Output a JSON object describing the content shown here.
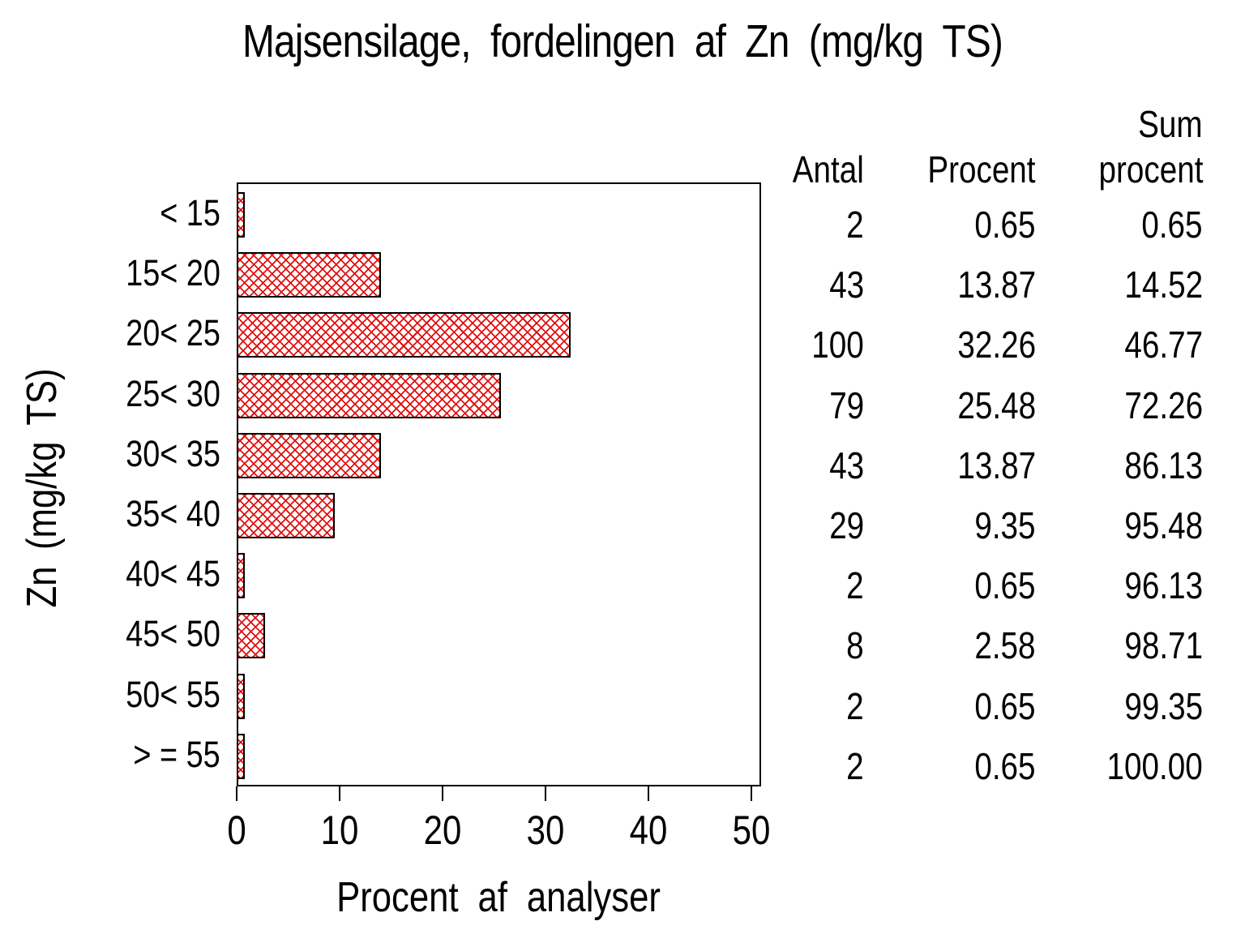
{
  "title": "Majsensilage, fordelingen af Zn (mg/kg TS)",
  "chart_data": {
    "type": "bar",
    "orientation": "horizontal",
    "title": "Majsensilage, fordelingen af Zn (mg/kg TS)",
    "xlabel": "Procent af analyser",
    "ylabel": "Zn (mg/kg TS)",
    "xlim": [
      0,
      50
    ],
    "xticks": [
      "0",
      "10",
      "20",
      "30",
      "40",
      "50"
    ],
    "grid": false,
    "legend": "none",
    "categories": [
      "< 15",
      "15< 20",
      "20< 25",
      "25< 30",
      "30< 35",
      "35< 40",
      "40< 45",
      "45< 50",
      "50< 55",
      "> = 55"
    ],
    "values": [
      0.65,
      13.87,
      32.26,
      25.48,
      13.87,
      9.35,
      0.65,
      2.58,
      0.65,
      0.65
    ],
    "bar_style": {
      "fill_pattern": "diagonal-crosshatch",
      "pattern_color": "#e01010",
      "border_color": "#000000",
      "plot_background": "#ffffff"
    }
  },
  "table": {
    "headers": {
      "antal": "Antal",
      "procent": "Procent",
      "sum_line1": "Sum",
      "sum_line2": "procent"
    },
    "rows": [
      {
        "antal": "2",
        "procent": "0.65",
        "sum": "0.65"
      },
      {
        "antal": "43",
        "procent": "13.87",
        "sum": "14.52"
      },
      {
        "antal": "100",
        "procent": "32.26",
        "sum": "46.77"
      },
      {
        "antal": "79",
        "procent": "25.48",
        "sum": "72.26"
      },
      {
        "antal": "43",
        "procent": "13.87",
        "sum": "86.13"
      },
      {
        "antal": "29",
        "procent": "9.35",
        "sum": "95.48"
      },
      {
        "antal": "2",
        "procent": "0.65",
        "sum": "96.13"
      },
      {
        "antal": "8",
        "procent": "2.58",
        "sum": "98.71"
      },
      {
        "antal": "2",
        "procent": "0.65",
        "sum": "99.35"
      },
      {
        "antal": "2",
        "procent": "0.65",
        "sum": "100.00"
      }
    ]
  }
}
